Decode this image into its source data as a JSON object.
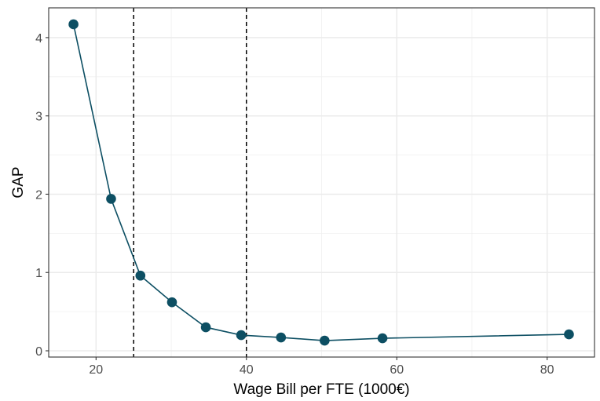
{
  "chart_data": {
    "type": "line",
    "title": "",
    "xlabel": "Wage Bill per FTE (1000€)",
    "ylabel": "GAP",
    "xlim": [
      13.7,
      86.3
    ],
    "ylim": [
      -0.08,
      4.38
    ],
    "x_ticks": [
      20,
      40,
      60,
      80
    ],
    "x_tick_labels": [
      "20",
      "40",
      "60",
      "80"
    ],
    "y_ticks": [
      0,
      1,
      2,
      3,
      4
    ],
    "y_tick_labels": [
      "0",
      "1",
      "2",
      "3",
      "4"
    ],
    "x_minor_grid": [
      30,
      50,
      70
    ],
    "y_minor_grid": [
      0.5,
      1.5,
      2.5,
      3.5
    ],
    "grid": true,
    "vlines": [
      25,
      40
    ],
    "series": [
      {
        "x": [
          17.0,
          22.0,
          25.9,
          30.1,
          34.6,
          39.3,
          44.6,
          50.4,
          58.1,
          82.9
        ],
        "y": [
          4.17,
          1.94,
          0.96,
          0.62,
          0.3,
          0.2,
          0.17,
          0.13,
          0.16,
          0.21
        ],
        "color": "#0d4f63"
      }
    ]
  }
}
